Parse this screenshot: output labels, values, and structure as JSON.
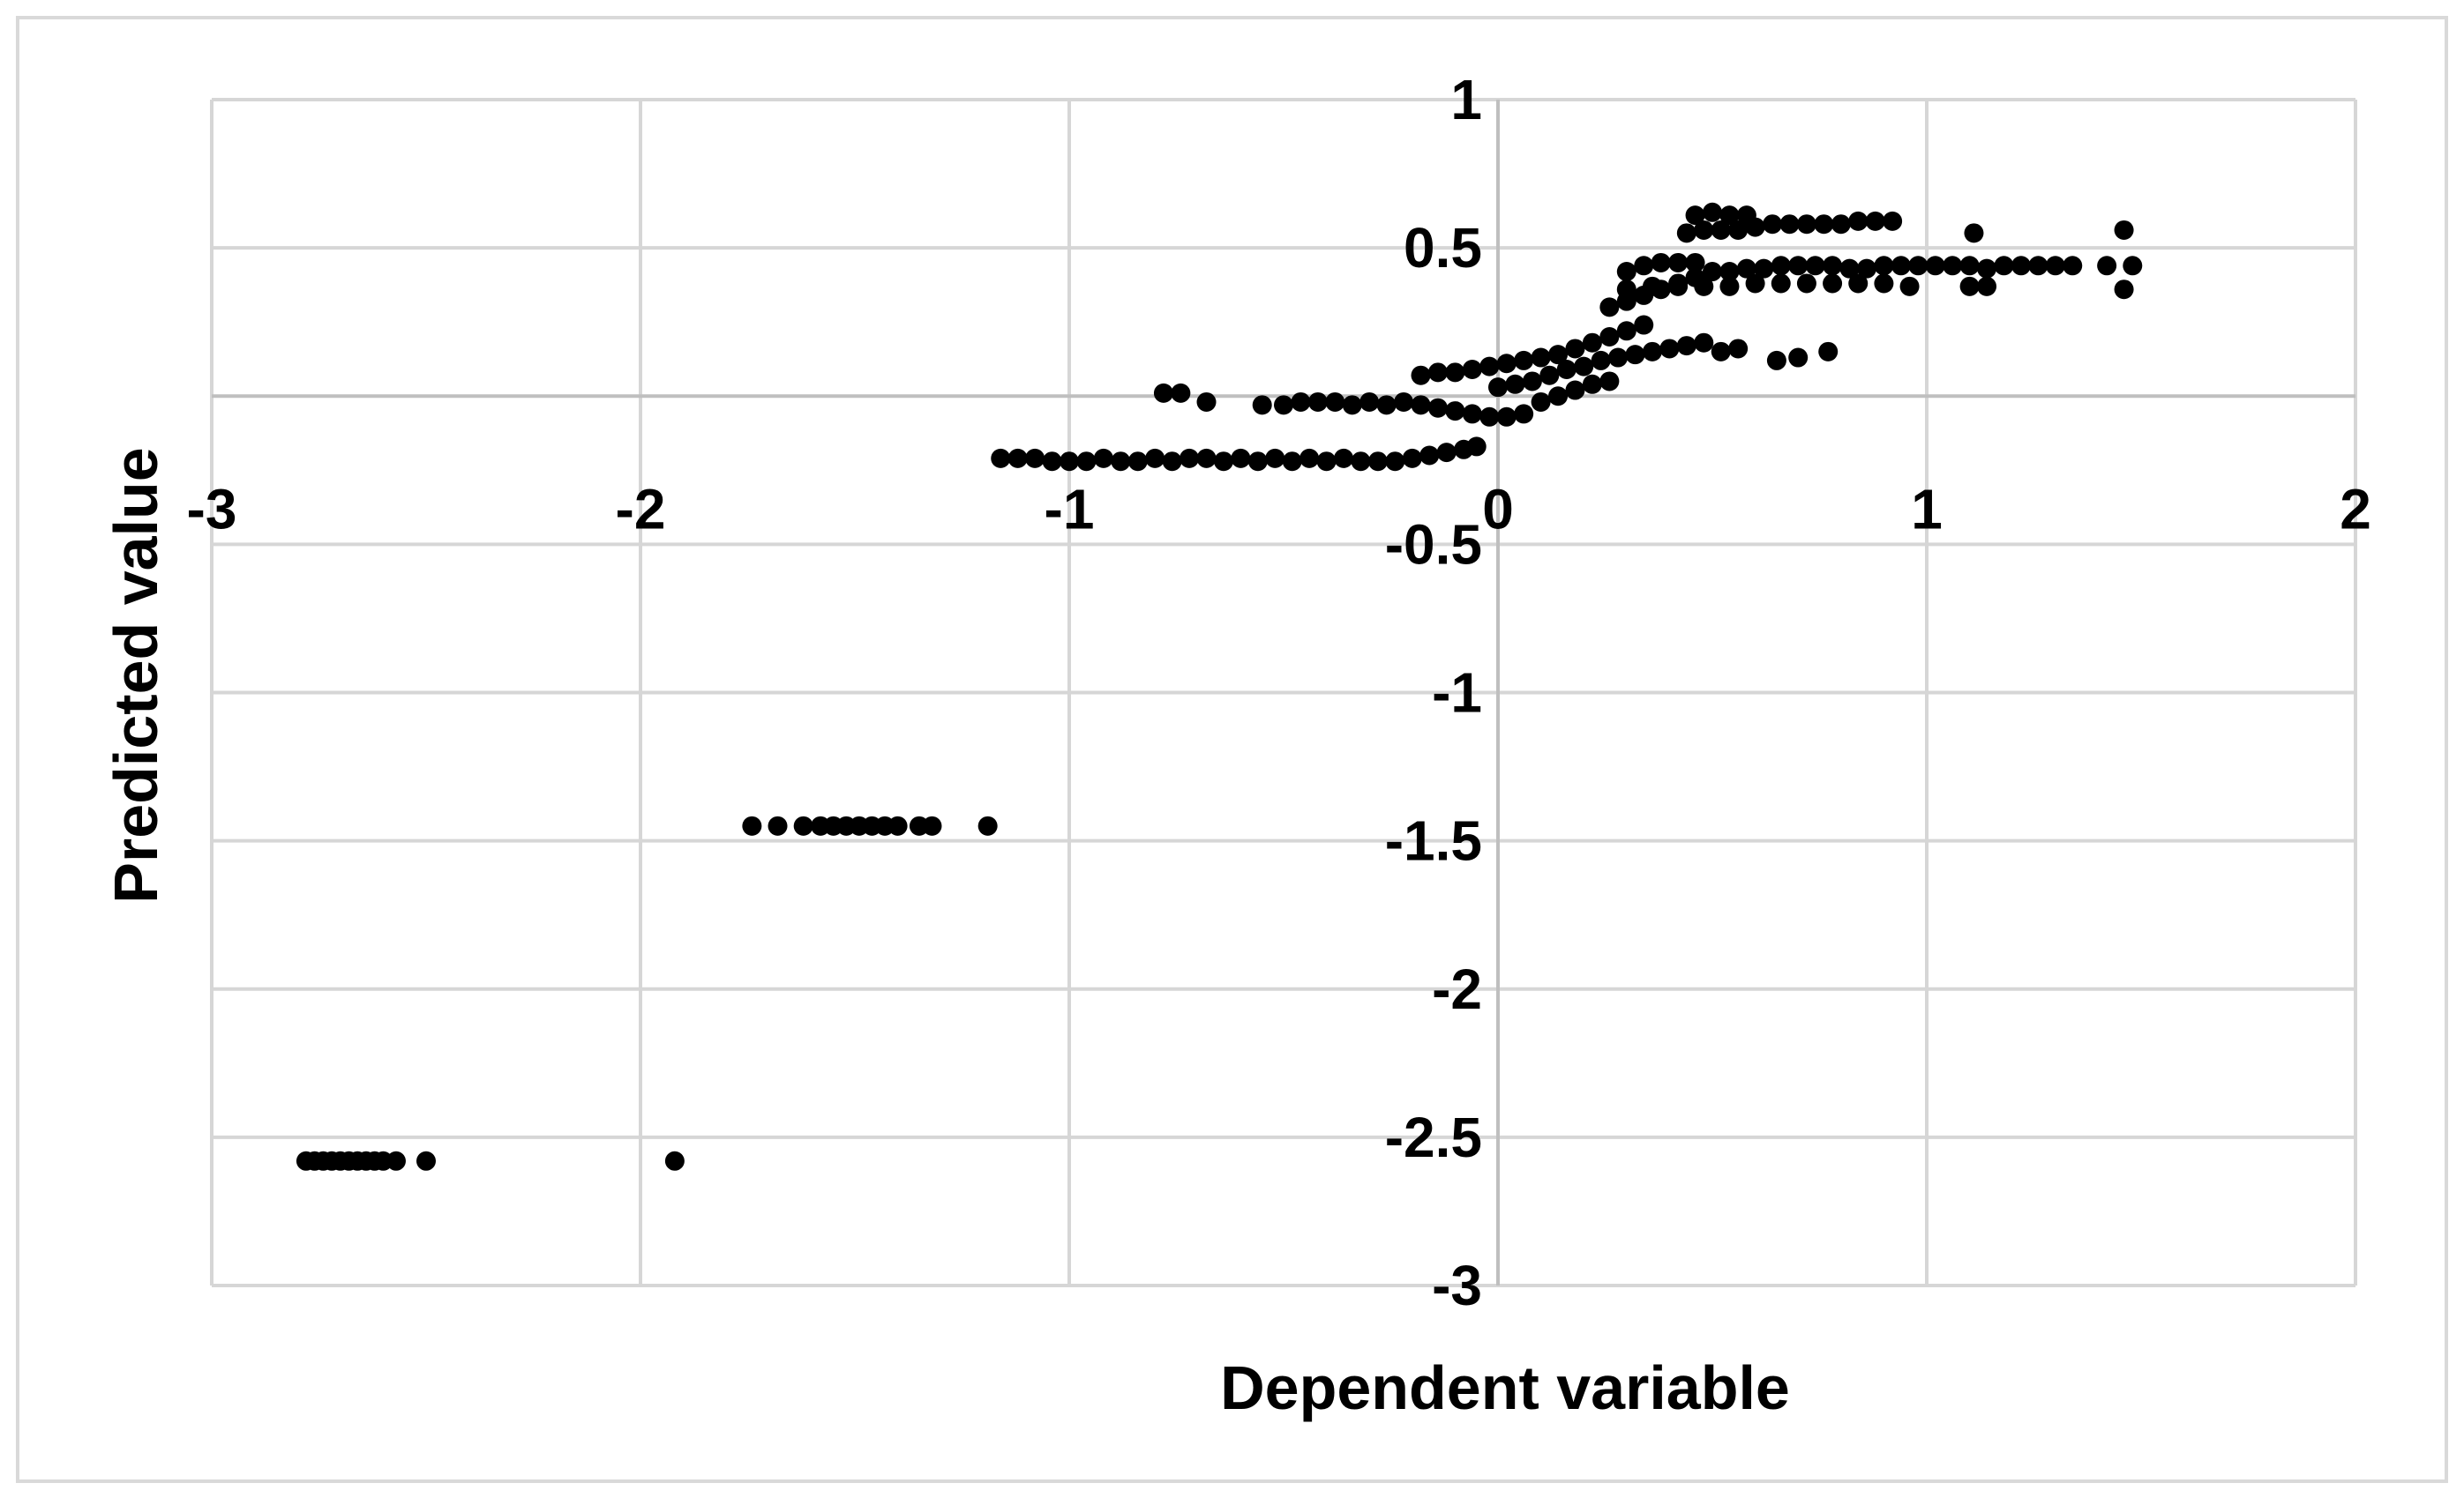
{
  "chart_data": {
    "type": "scatter",
    "title": "",
    "xlabel": "Dependent variable",
    "ylabel": "Predicted value",
    "xlim": [
      -3,
      2
    ],
    "ylim": [
      -3,
      1
    ],
    "x_ticks": [
      -3,
      -2,
      -1,
      0,
      1,
      2
    ],
    "y_ticks": [
      1,
      0.5,
      -0.5,
      -1,
      -1.5,
      -2,
      -2.5,
      -3
    ],
    "x_tick_labels": [
      "-3",
      "-2",
      "-1",
      "0",
      "1",
      "2"
    ],
    "y_tick_labels": [
      "1",
      "0.5",
      "-0.5",
      "-1",
      "-1.5",
      "-2",
      "-2.5",
      "-3"
    ],
    "grid": true,
    "legend": "none",
    "marker_color": "#000000",
    "series": [
      {
        "points": [
          [
            -2.78,
            -2.58
          ],
          [
            -2.76,
            -2.58
          ],
          [
            -2.74,
            -2.58
          ],
          [
            -2.72,
            -2.58
          ],
          [
            -2.7,
            -2.58
          ],
          [
            -2.68,
            -2.58
          ],
          [
            -2.66,
            -2.58
          ],
          [
            -2.64,
            -2.58
          ],
          [
            -2.62,
            -2.58
          ],
          [
            -2.6,
            -2.58
          ],
          [
            -2.57,
            -2.58
          ],
          [
            -2.5,
            -2.58
          ],
          [
            -1.92,
            -2.58
          ],
          [
            -1.74,
            -1.45
          ],
          [
            -1.68,
            -1.45
          ],
          [
            -1.62,
            -1.45
          ],
          [
            -1.58,
            -1.45
          ],
          [
            -1.55,
            -1.45
          ],
          [
            -1.52,
            -1.45
          ],
          [
            -1.49,
            -1.45
          ],
          [
            -1.46,
            -1.45
          ],
          [
            -1.43,
            -1.45
          ],
          [
            -1.4,
            -1.45
          ],
          [
            -1.35,
            -1.45
          ],
          [
            -1.32,
            -1.45
          ],
          [
            -1.19,
            -1.45
          ],
          [
            -1.16,
            -0.21
          ],
          [
            -1.12,
            -0.21
          ],
          [
            -1.08,
            -0.21
          ],
          [
            -1.04,
            -0.22
          ],
          [
            -1.0,
            -0.22
          ],
          [
            -0.96,
            -0.22
          ],
          [
            -0.92,
            -0.21
          ],
          [
            -0.88,
            -0.22
          ],
          [
            -0.84,
            -0.22
          ],
          [
            -0.8,
            -0.21
          ],
          [
            -0.76,
            -0.22
          ],
          [
            -0.72,
            -0.21
          ],
          [
            -0.68,
            -0.21
          ],
          [
            -0.64,
            -0.22
          ],
          [
            -0.6,
            -0.21
          ],
          [
            -0.56,
            -0.22
          ],
          [
            -0.52,
            -0.21
          ],
          [
            -0.48,
            -0.22
          ],
          [
            -0.44,
            -0.21
          ],
          [
            -0.4,
            -0.22
          ],
          [
            -0.36,
            -0.21
          ],
          [
            -0.32,
            -0.22
          ],
          [
            -0.28,
            -0.22
          ],
          [
            -0.24,
            -0.22
          ],
          [
            -0.2,
            -0.21
          ],
          [
            -0.16,
            -0.2
          ],
          [
            -0.12,
            -0.19
          ],
          [
            -0.08,
            -0.18
          ],
          [
            -0.05,
            -0.17
          ],
          [
            -0.78,
            0.01
          ],
          [
            -0.74,
            0.01
          ],
          [
            -0.68,
            -0.02
          ],
          [
            -0.55,
            -0.03
          ],
          [
            -0.5,
            -0.03
          ],
          [
            -0.46,
            -0.02
          ],
          [
            -0.42,
            -0.02
          ],
          [
            -0.38,
            -0.02
          ],
          [
            -0.34,
            -0.03
          ],
          [
            -0.3,
            -0.02
          ],
          [
            -0.26,
            -0.03
          ],
          [
            -0.22,
            -0.02
          ],
          [
            -0.18,
            -0.03
          ],
          [
            -0.14,
            -0.04
          ],
          [
            -0.1,
            -0.05
          ],
          [
            -0.06,
            -0.06
          ],
          [
            -0.02,
            -0.07
          ],
          [
            0.02,
            -0.07
          ],
          [
            0.06,
            -0.06
          ],
          [
            -0.18,
            0.07
          ],
          [
            -0.14,
            0.08
          ],
          [
            -0.1,
            0.08
          ],
          [
            -0.06,
            0.09
          ],
          [
            -0.02,
            0.1
          ],
          [
            0.02,
            0.11
          ],
          [
            0.06,
            0.12
          ],
          [
            0.1,
            0.13
          ],
          [
            0.14,
            0.14
          ],
          [
            0.18,
            0.16
          ],
          [
            0.22,
            0.18
          ],
          [
            0.26,
            0.2
          ],
          [
            0.3,
            0.22
          ],
          [
            0.34,
            0.24
          ],
          [
            0.2,
            0.1
          ],
          [
            0.24,
            0.12
          ],
          [
            0.28,
            0.13
          ],
          [
            0.32,
            0.14
          ],
          [
            0.36,
            0.15
          ],
          [
            0.4,
            0.16
          ],
          [
            0.44,
            0.17
          ],
          [
            0.48,
            0.18
          ],
          [
            0.52,
            0.15
          ],
          [
            0.56,
            0.16
          ],
          [
            0.65,
            0.12
          ],
          [
            0.7,
            0.13
          ],
          [
            0.77,
            0.15
          ],
          [
            0.0,
            0.03
          ],
          [
            0.04,
            0.04
          ],
          [
            0.08,
            0.05
          ],
          [
            0.12,
            0.07
          ],
          [
            0.16,
            0.09
          ],
          [
            0.1,
            -0.02
          ],
          [
            0.14,
            0.0
          ],
          [
            0.18,
            0.02
          ],
          [
            0.22,
            0.04
          ],
          [
            0.26,
            0.05
          ],
          [
            0.26,
            0.3
          ],
          [
            0.3,
            0.32
          ],
          [
            0.34,
            0.34
          ],
          [
            0.38,
            0.36
          ],
          [
            0.42,
            0.38
          ],
          [
            0.46,
            0.4
          ],
          [
            0.5,
            0.42
          ],
          [
            0.54,
            0.42
          ],
          [
            0.58,
            0.43
          ],
          [
            0.62,
            0.43
          ],
          [
            0.66,
            0.44
          ],
          [
            0.7,
            0.44
          ],
          [
            0.74,
            0.44
          ],
          [
            0.78,
            0.44
          ],
          [
            0.82,
            0.43
          ],
          [
            0.86,
            0.43
          ],
          [
            0.9,
            0.44
          ],
          [
            0.94,
            0.44
          ],
          [
            0.98,
            0.44
          ],
          [
            1.02,
            0.44
          ],
          [
            1.06,
            0.44
          ],
          [
            1.1,
            0.44
          ],
          [
            1.14,
            0.43
          ],
          [
            1.18,
            0.44
          ],
          [
            1.22,
            0.44
          ],
          [
            1.26,
            0.44
          ],
          [
            1.3,
            0.44
          ],
          [
            1.34,
            0.44
          ],
          [
            1.42,
            0.44
          ],
          [
            1.48,
            0.44
          ],
          [
            0.3,
            0.36
          ],
          [
            0.36,
            0.37
          ],
          [
            0.42,
            0.37
          ],
          [
            0.48,
            0.37
          ],
          [
            0.54,
            0.37
          ],
          [
            0.6,
            0.38
          ],
          [
            0.66,
            0.38
          ],
          [
            0.72,
            0.38
          ],
          [
            0.78,
            0.38
          ],
          [
            0.84,
            0.38
          ],
          [
            0.9,
            0.38
          ],
          [
            0.96,
            0.37
          ],
          [
            1.1,
            0.37
          ],
          [
            1.14,
            0.37
          ],
          [
            1.46,
            0.36
          ],
          [
            0.3,
            0.42
          ],
          [
            0.34,
            0.44
          ],
          [
            0.38,
            0.45
          ],
          [
            0.42,
            0.45
          ],
          [
            0.46,
            0.45
          ],
          [
            0.44,
            0.55
          ],
          [
            0.48,
            0.56
          ],
          [
            0.52,
            0.56
          ],
          [
            0.56,
            0.56
          ],
          [
            0.6,
            0.57
          ],
          [
            0.64,
            0.58
          ],
          [
            0.68,
            0.58
          ],
          [
            0.72,
            0.58
          ],
          [
            0.76,
            0.58
          ],
          [
            0.8,
            0.58
          ],
          [
            0.84,
            0.59
          ],
          [
            0.88,
            0.59
          ],
          [
            0.92,
            0.59
          ],
          [
            1.11,
            0.55
          ],
          [
            1.46,
            0.56
          ],
          [
            0.46,
            0.61
          ],
          [
            0.5,
            0.62
          ],
          [
            0.54,
            0.61
          ],
          [
            0.58,
            0.61
          ]
        ]
      }
    ]
  }
}
